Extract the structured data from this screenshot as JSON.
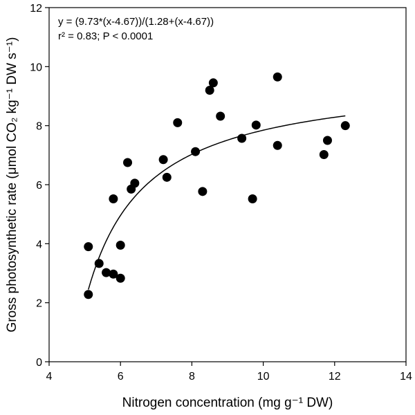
{
  "chart_data": {
    "type": "scatter",
    "xlabel": "Nitrogen concentration (mg g⁻¹ DW)",
    "ylabel": "Gross photosynthetic rate (μmol CO₂ kg⁻¹ DW s⁻¹)",
    "xlim": [
      4,
      14
    ],
    "ylim": [
      0,
      12
    ],
    "xticks": [
      4,
      6,
      8,
      10,
      12,
      14
    ],
    "yticks": [
      0,
      2,
      4,
      6,
      8,
      10,
      12
    ],
    "grid": false,
    "annotations": {
      "equation": "y = (9.73*(x-4.67))/(1.28+(x-4.67))",
      "stats": "r² = 0.83; P < 0.0001"
    },
    "fit": {
      "a": 9.73,
      "b": 4.67,
      "c": 1.28,
      "x_range": [
        5.1,
        12.3
      ]
    },
    "points": [
      {
        "x": 5.1,
        "y": 3.9
      },
      {
        "x": 5.1,
        "y": 2.28
      },
      {
        "x": 5.4,
        "y": 3.33
      },
      {
        "x": 5.6,
        "y": 3.02
      },
      {
        "x": 5.8,
        "y": 2.97
      },
      {
        "x": 5.8,
        "y": 5.52
      },
      {
        "x": 6.0,
        "y": 3.95
      },
      {
        "x": 6.0,
        "y": 2.83
      },
      {
        "x": 6.2,
        "y": 6.75
      },
      {
        "x": 6.3,
        "y": 5.85
      },
      {
        "x": 6.4,
        "y": 6.05
      },
      {
        "x": 7.2,
        "y": 6.85
      },
      {
        "x": 7.3,
        "y": 6.25
      },
      {
        "x": 7.6,
        "y": 8.1
      },
      {
        "x": 8.1,
        "y": 7.12
      },
      {
        "x": 8.3,
        "y": 5.77
      },
      {
        "x": 8.5,
        "y": 9.2
      },
      {
        "x": 8.6,
        "y": 9.45
      },
      {
        "x": 8.8,
        "y": 8.32
      },
      {
        "x": 9.4,
        "y": 7.57
      },
      {
        "x": 9.7,
        "y": 5.52
      },
      {
        "x": 9.8,
        "y": 8.02
      },
      {
        "x": 10.4,
        "y": 9.65
      },
      {
        "x": 10.4,
        "y": 7.33
      },
      {
        "x": 11.7,
        "y": 7.02
      },
      {
        "x": 11.8,
        "y": 7.5
      },
      {
        "x": 12.3,
        "y": 8.0
      }
    ]
  }
}
